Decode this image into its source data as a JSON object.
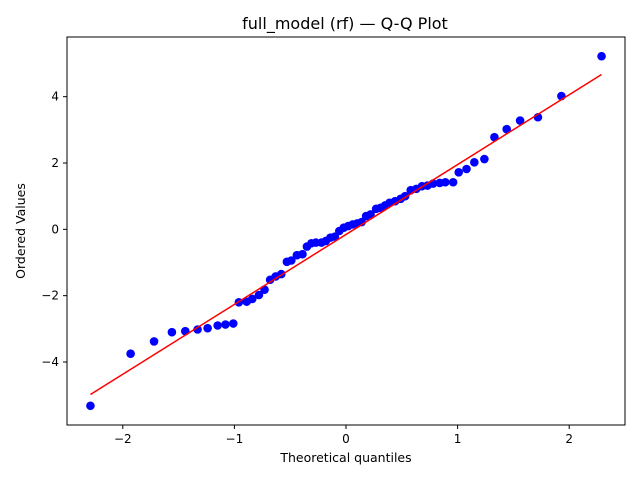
{
  "chart_data": {
    "type": "scatter",
    "title": "full_model (rf) — Q-Q Plot",
    "xlabel": "Theoretical quantiles",
    "ylabel": "Ordered Values",
    "xlim": [
      -2.5,
      2.5
    ],
    "ylim": [
      -5.9,
      5.8
    ],
    "xticks": [
      -2,
      -1,
      0,
      1,
      2
    ],
    "yticks": [
      -4,
      -2,
      0,
      2,
      4
    ],
    "grid": false,
    "colors": {
      "points": "#0000ff",
      "fit_line": "#ff0000"
    },
    "fit_line": {
      "x": [
        -2.29,
        2.29
      ],
      "y": [
        -4.98,
        4.67
      ]
    },
    "points": {
      "x": [
        -2.29,
        -1.93,
        -1.72,
        -1.56,
        -1.44,
        -1.33,
        -1.24,
        -1.15,
        -1.08,
        -1.01,
        -0.96,
        -0.89,
        -0.84,
        -0.78,
        -0.73,
        -0.68,
        -0.63,
        -0.58,
        -0.53,
        -0.49,
        -0.44,
        -0.39,
        -0.35,
        -0.31,
        -0.27,
        -0.22,
        -0.18,
        -0.14,
        -0.1,
        -0.06,
        -0.02,
        0.02,
        0.06,
        0.1,
        0.14,
        0.18,
        0.22,
        0.27,
        0.31,
        0.35,
        0.39,
        0.44,
        0.49,
        0.53,
        0.58,
        0.63,
        0.68,
        0.73,
        0.78,
        0.84,
        0.89,
        0.96,
        1.01,
        1.08,
        1.15,
        1.24,
        1.33,
        1.44,
        1.56,
        1.72,
        1.93,
        2.29
      ],
      "y": [
        -5.32,
        -3.75,
        -3.38,
        -3.1,
        -3.07,
        -3.02,
        -2.98,
        -2.9,
        -2.87,
        -2.84,
        -2.2,
        -2.18,
        -2.1,
        -1.98,
        -1.82,
        -1.52,
        -1.42,
        -1.35,
        -0.98,
        -0.94,
        -0.78,
        -0.75,
        -0.52,
        -0.42,
        -0.4,
        -0.4,
        -0.35,
        -0.25,
        -0.22,
        -0.05,
        0.05,
        0.1,
        0.15,
        0.18,
        0.22,
        0.4,
        0.45,
        0.62,
        0.65,
        0.72,
        0.8,
        0.85,
        0.92,
        1.0,
        1.18,
        1.22,
        1.3,
        1.32,
        1.38,
        1.4,
        1.42,
        1.42,
        1.72,
        1.82,
        2.02,
        2.12,
        2.78,
        3.02,
        3.28,
        3.38,
        4.02,
        5.22
      ]
    }
  }
}
